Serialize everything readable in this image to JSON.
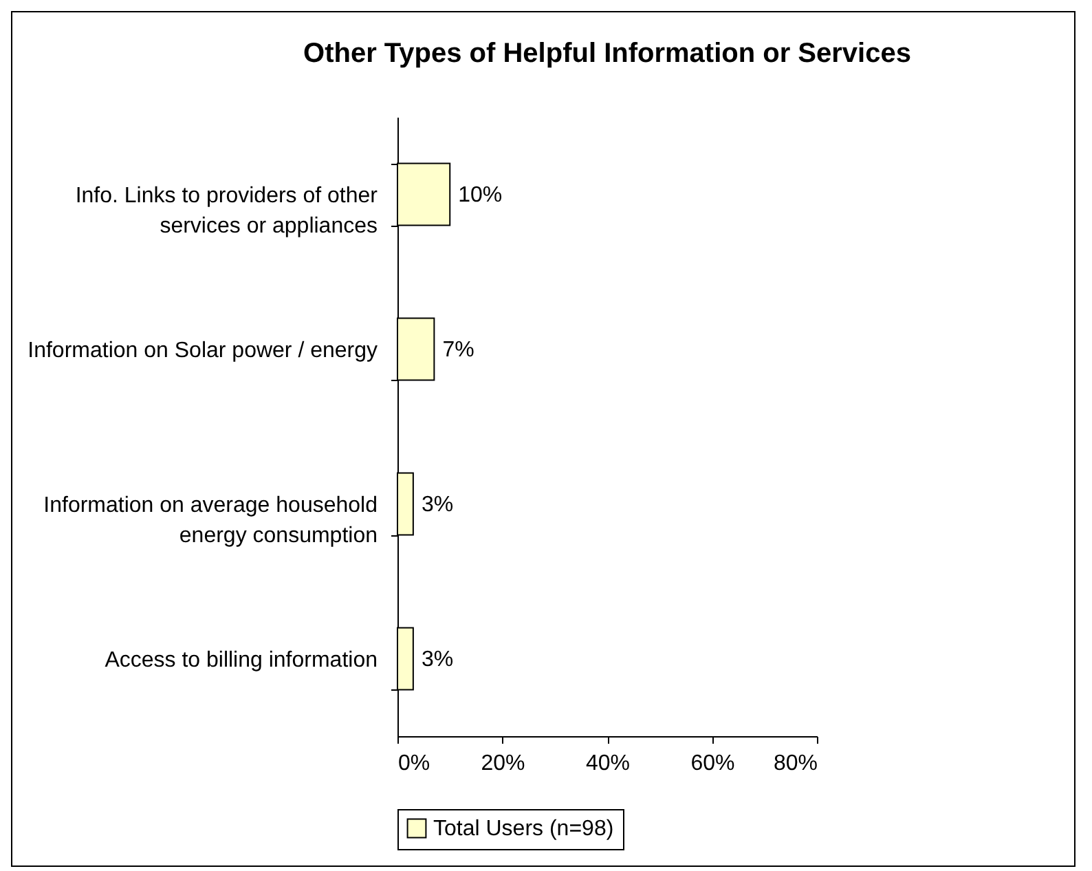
{
  "chart_data": {
    "type": "bar",
    "orientation": "horizontal",
    "title": "Other Types of Helpful Information or Services",
    "categories": [
      "Info. Links to providers of other services or appliances",
      "Information on Solar power / energy",
      "Information on average household energy consumption",
      "Access to billing information"
    ],
    "series": [
      {
        "name": "Total Users (n=98)",
        "color": "#ffffcc",
        "values": [
          10,
          7,
          3,
          3
        ],
        "value_labels": [
          "10%",
          "7%",
          "3%",
          "3%"
        ]
      }
    ],
    "xlim": [
      0,
      80
    ],
    "xticks": [
      {
        "value": 0,
        "label": "0%"
      },
      {
        "value": 20,
        "label": "20%"
      },
      {
        "value": 40,
        "label": "40%"
      },
      {
        "value": 60,
        "label": "60%"
      },
      {
        "value": 80,
        "label": "80%"
      }
    ],
    "grid": false,
    "legend": "bottom"
  }
}
